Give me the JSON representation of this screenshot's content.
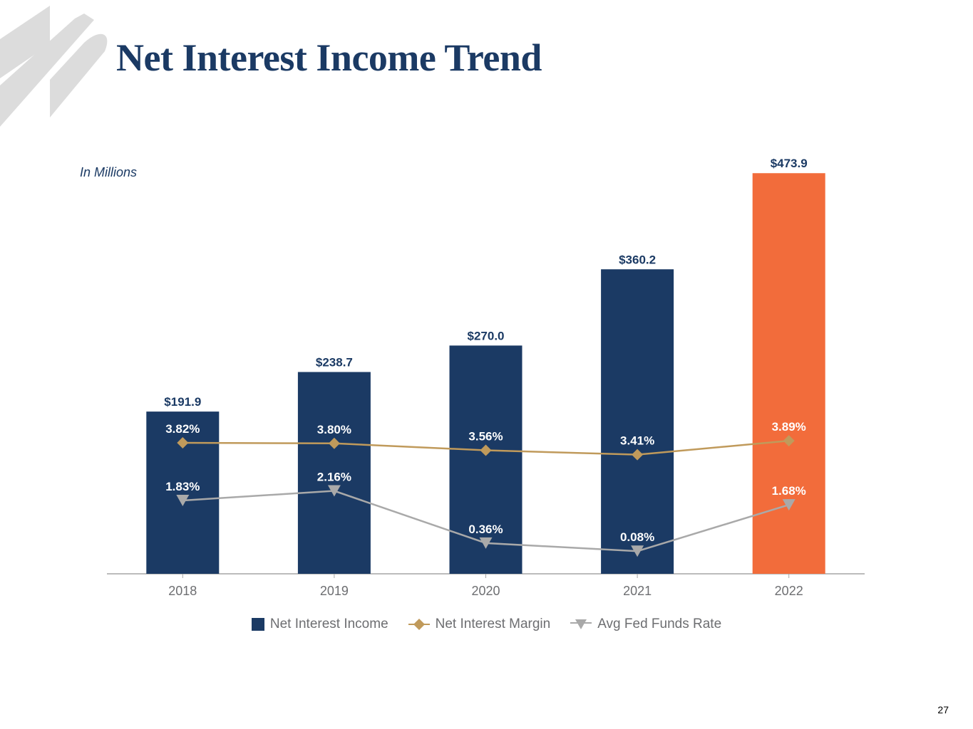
{
  "title": "Net Interest Income Trend",
  "units_note": "In Millions",
  "page_number": "27",
  "colors": {
    "bar": "#1b3a64",
    "bar_highlight": "#f26c3b",
    "margin_line": "#c09a5b",
    "fed_line": "#a9a9a9",
    "axis": "#a6a6a6",
    "title": "#1b3a64"
  },
  "chart_data": {
    "type": "bar",
    "categories": [
      "2018",
      "2019",
      "2020",
      "2021",
      "2022"
    ],
    "series": [
      {
        "name": "Net Interest Income",
        "type": "bar",
        "values": [
          191.9,
          238.7,
          270.0,
          360.2,
          473.9
        ],
        "labels": [
          "$191.9",
          "$238.7",
          "$270.0",
          "$360.2",
          "$473.9"
        ],
        "highlight_index": 4
      },
      {
        "name": "Net Interest Margin",
        "type": "line",
        "marker": "diamond",
        "values": [
          3.82,
          3.8,
          3.56,
          3.41,
          3.89
        ],
        "labels": [
          "3.82%",
          "3.80%",
          "3.56%",
          "3.41%",
          "3.89%"
        ]
      },
      {
        "name": "Avg Fed Funds Rate",
        "type": "line",
        "marker": "triangle-down",
        "values": [
          1.83,
          2.16,
          0.36,
          0.08,
          1.68
        ],
        "labels": [
          "1.83%",
          "2.16%",
          "0.36%",
          "0.08%",
          "1.68%"
        ]
      }
    ],
    "ylim": [
      0,
      480
    ],
    "secondary_ylim": [
      -0.7,
      13.3
    ],
    "legend_position": "bottom",
    "grid": false
  }
}
